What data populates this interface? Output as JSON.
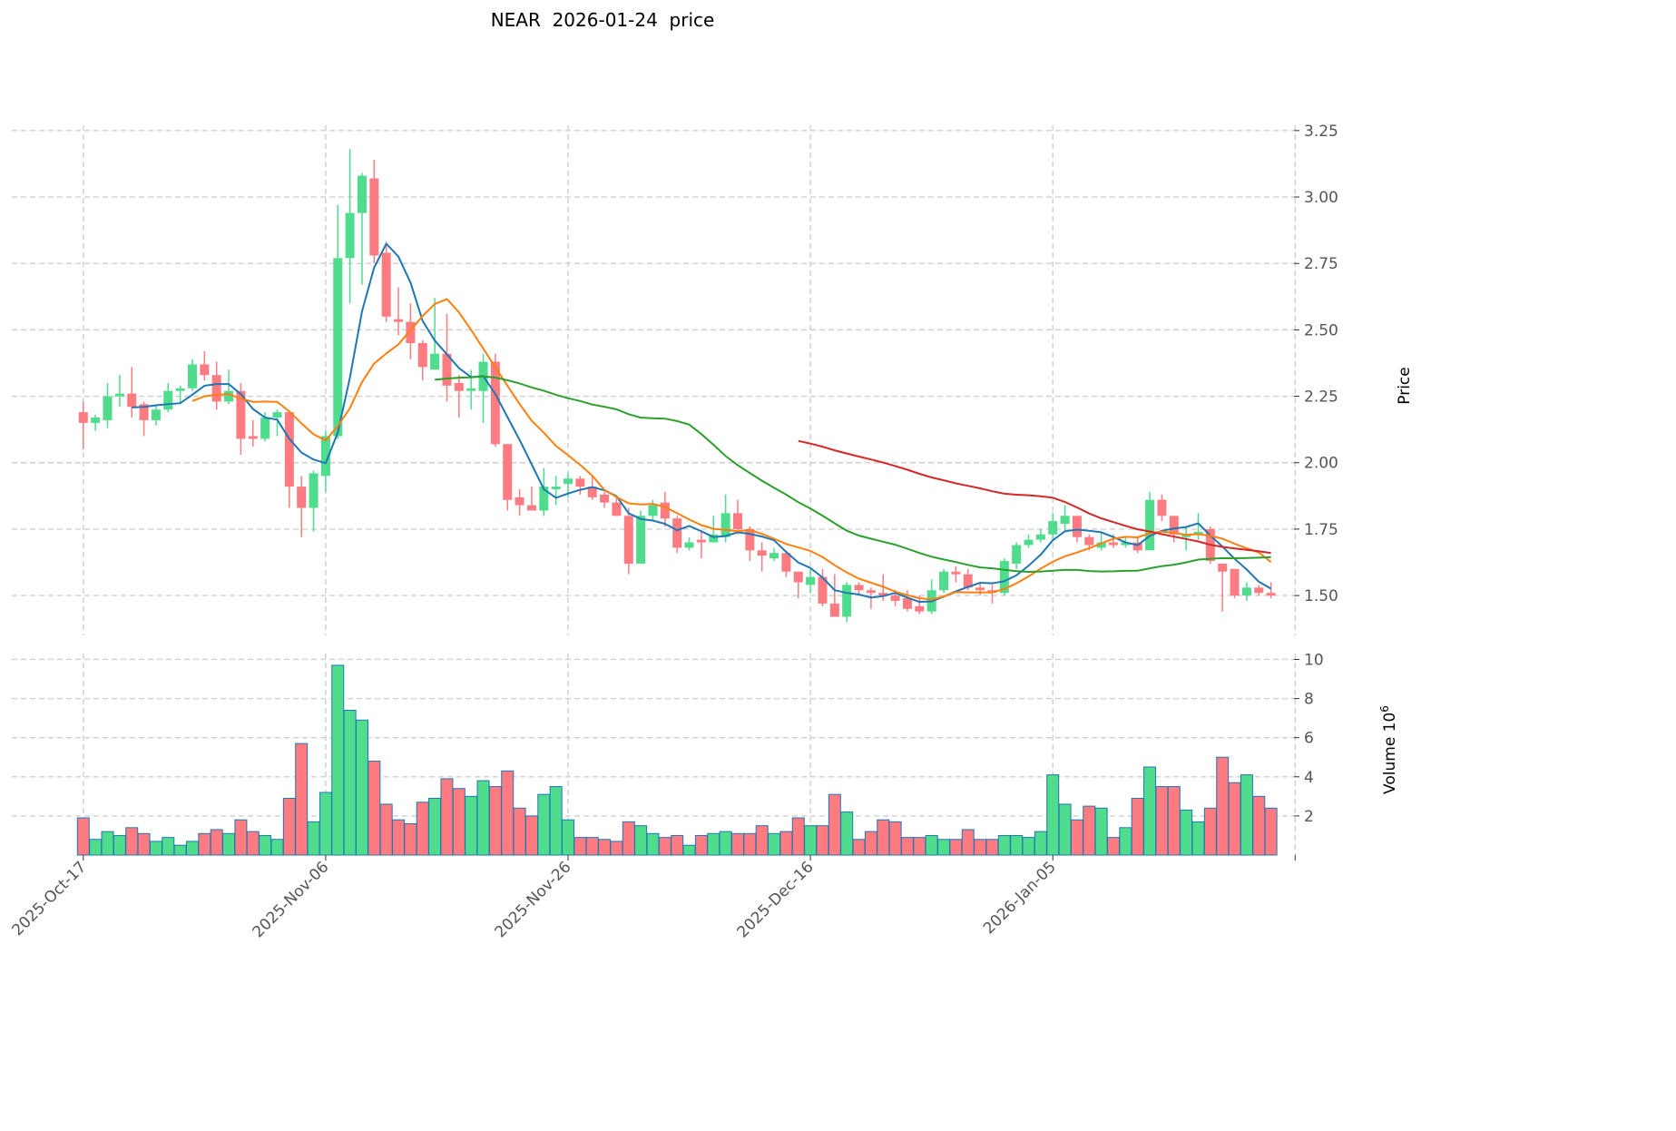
{
  "title": "NEAR  2026-01-24  price",
  "chart_data": {
    "type": "candlestick",
    "title": "NEAR  2026-01-24  price",
    "ylabel": "Price",
    "volume_label": "Volume  10",
    "volume_exponent": "6",
    "ylim": [
      1.35,
      3.27
    ],
    "volume_ylim": [
      0,
      10.3
    ],
    "xlim": [
      -5.9,
      99.9
    ],
    "yticks": [
      "1.50",
      "1.75",
      "2.00",
      "2.25",
      "2.50",
      "2.75",
      "3.00",
      "3.25"
    ],
    "volume_yticks": [
      "2",
      "4",
      "6",
      "8",
      "10"
    ],
    "xticks": [
      {
        "index": 0,
        "label": "2025-Oct-17"
      },
      {
        "index": 20,
        "label": "2025-Nov-06"
      },
      {
        "index": 40,
        "label": "2025-Nov-26"
      },
      {
        "index": 60,
        "label": "2025-Dec-16"
      },
      {
        "index": 80,
        "label": "2026-Jan-05"
      },
      {
        "index": 100,
        "label": ""
      }
    ],
    "colors": {
      "up": "#4fdc8c",
      "down": "#ff7b82",
      "edge_vol": "#1f77b4"
    },
    "moving_averages": [
      {
        "window": 5,
        "color": "#1f77b4"
      },
      {
        "window": 10,
        "color": "#ff7f0e"
      },
      {
        "window": 30,
        "color": "#2ca02c"
      },
      {
        "window": 60,
        "color": "#d62728"
      }
    ],
    "ohlc": [
      [
        2.19,
        2.23,
        2.05,
        2.15
      ],
      [
        2.15,
        2.18,
        2.12,
        2.17
      ],
      [
        2.16,
        2.3,
        2.13,
        2.25
      ],
      [
        2.25,
        2.33,
        2.21,
        2.26
      ],
      [
        2.26,
        2.36,
        2.17,
        2.21
      ],
      [
        2.22,
        2.23,
        2.1,
        2.16
      ],
      [
        2.16,
        2.22,
        2.14,
        2.2
      ],
      [
        2.2,
        2.3,
        2.19,
        2.27
      ],
      [
        2.27,
        2.29,
        2.22,
        2.28
      ],
      [
        2.28,
        2.39,
        2.27,
        2.37
      ],
      [
        2.37,
        2.42,
        2.31,
        2.33
      ],
      [
        2.33,
        2.38,
        2.2,
        2.23
      ],
      [
        2.23,
        2.35,
        2.22,
        2.27
      ],
      [
        2.27,
        2.3,
        2.03,
        2.09
      ],
      [
        2.1,
        2.16,
        2.06,
        2.09
      ],
      [
        2.09,
        2.19,
        2.08,
        2.17
      ],
      [
        2.17,
        2.2,
        2.1,
        2.19
      ],
      [
        2.19,
        2.19,
        1.83,
        1.91
      ],
      [
        1.91,
        1.95,
        1.72,
        1.83
      ],
      [
        1.83,
        1.97,
        1.74,
        1.96
      ],
      [
        1.95,
        2.12,
        1.89,
        2.1
      ],
      [
        2.1,
        2.97,
        2.09,
        2.77
      ],
      [
        2.77,
        3.18,
        2.6,
        2.94
      ],
      [
        2.94,
        3.09,
        2.67,
        3.08
      ],
      [
        3.07,
        3.14,
        2.75,
        2.78
      ],
      [
        2.79,
        2.83,
        2.53,
        2.55
      ],
      [
        2.54,
        2.66,
        2.48,
        2.53
      ],
      [
        2.53,
        2.6,
        2.39,
        2.45
      ],
      [
        2.45,
        2.46,
        2.31,
        2.36
      ],
      [
        2.35,
        2.62,
        2.35,
        2.41
      ],
      [
        2.41,
        2.56,
        2.23,
        2.29
      ],
      [
        2.3,
        2.33,
        2.17,
        2.27
      ],
      [
        2.27,
        2.35,
        2.2,
        2.28
      ],
      [
        2.27,
        2.41,
        2.15,
        2.38
      ],
      [
        2.38,
        2.41,
        2.06,
        2.07
      ],
      [
        2.07,
        2.07,
        1.82,
        1.86
      ],
      [
        1.87,
        1.9,
        1.8,
        1.84
      ],
      [
        1.84,
        1.91,
        1.82,
        1.82
      ],
      [
        1.82,
        1.98,
        1.8,
        1.91
      ],
      [
        1.9,
        1.95,
        1.84,
        1.91
      ],
      [
        1.92,
        1.96,
        1.87,
        1.94
      ],
      [
        1.94,
        1.95,
        1.88,
        1.91
      ],
      [
        1.91,
        1.95,
        1.86,
        1.87
      ],
      [
        1.88,
        1.89,
        1.83,
        1.85
      ],
      [
        1.85,
        1.87,
        1.8,
        1.8
      ],
      [
        1.8,
        1.83,
        1.58,
        1.62
      ],
      [
        1.62,
        1.82,
        1.62,
        1.8
      ],
      [
        1.8,
        1.86,
        1.78,
        1.84
      ],
      [
        1.85,
        1.89,
        1.76,
        1.79
      ],
      [
        1.79,
        1.8,
        1.66,
        1.68
      ],
      [
        1.68,
        1.72,
        1.67,
        1.7
      ],
      [
        1.71,
        1.74,
        1.64,
        1.7
      ],
      [
        1.7,
        1.8,
        1.7,
        1.73
      ],
      [
        1.72,
        1.88,
        1.7,
        1.81
      ],
      [
        1.81,
        1.86,
        1.73,
        1.75
      ],
      [
        1.75,
        1.76,
        1.63,
        1.67
      ],
      [
        1.67,
        1.7,
        1.59,
        1.65
      ],
      [
        1.64,
        1.68,
        1.63,
        1.66
      ],
      [
        1.66,
        1.67,
        1.57,
        1.59
      ],
      [
        1.59,
        1.59,
        1.49,
        1.55
      ],
      [
        1.54,
        1.6,
        1.51,
        1.57
      ],
      [
        1.57,
        1.6,
        1.46,
        1.47
      ],
      [
        1.47,
        1.58,
        1.42,
        1.42
      ],
      [
        1.42,
        1.55,
        1.4,
        1.54
      ],
      [
        1.54,
        1.55,
        1.5,
        1.52
      ],
      [
        1.52,
        1.53,
        1.45,
        1.51
      ],
      [
        1.51,
        1.58,
        1.48,
        1.5
      ],
      [
        1.5,
        1.52,
        1.46,
        1.48
      ],
      [
        1.49,
        1.52,
        1.44,
        1.45
      ],
      [
        1.46,
        1.5,
        1.43,
        1.44
      ],
      [
        1.44,
        1.56,
        1.43,
        1.52
      ],
      [
        1.52,
        1.6,
        1.51,
        1.59
      ],
      [
        1.59,
        1.61,
        1.55,
        1.58
      ],
      [
        1.58,
        1.6,
        1.52,
        1.53
      ],
      [
        1.53,
        1.55,
        1.5,
        1.52
      ],
      [
        1.52,
        1.54,
        1.47,
        1.51
      ],
      [
        1.51,
        1.64,
        1.5,
        1.63
      ],
      [
        1.62,
        1.7,
        1.6,
        1.69
      ],
      [
        1.69,
        1.73,
        1.68,
        1.71
      ],
      [
        1.71,
        1.75,
        1.7,
        1.73
      ],
      [
        1.73,
        1.81,
        1.71,
        1.78
      ],
      [
        1.77,
        1.84,
        1.74,
        1.8
      ],
      [
        1.8,
        1.8,
        1.7,
        1.72
      ],
      [
        1.72,
        1.73,
        1.67,
        1.69
      ],
      [
        1.68,
        1.74,
        1.67,
        1.7
      ],
      [
        1.7,
        1.73,
        1.68,
        1.69
      ],
      [
        1.69,
        1.72,
        1.68,
        1.7
      ],
      [
        1.7,
        1.72,
        1.66,
        1.67
      ],
      [
        1.67,
        1.89,
        1.67,
        1.86
      ],
      [
        1.86,
        1.88,
        1.78,
        1.8
      ],
      [
        1.8,
        1.8,
        1.7,
        1.73
      ],
      [
        1.72,
        1.76,
        1.67,
        1.73
      ],
      [
        1.73,
        1.81,
        1.71,
        1.74
      ],
      [
        1.75,
        1.76,
        1.62,
        1.63
      ],
      [
        1.62,
        1.62,
        1.44,
        1.59
      ],
      [
        1.6,
        1.6,
        1.49,
        1.5
      ],
      [
        1.5,
        1.55,
        1.48,
        1.53
      ],
      [
        1.53,
        1.54,
        1.5,
        1.51
      ],
      [
        1.51,
        1.55,
        1.49,
        1.5
      ]
    ],
    "volume": [
      1.9,
      0.8,
      1.2,
      1.0,
      1.4,
      1.1,
      0.7,
      0.9,
      0.5,
      0.7,
      1.1,
      1.3,
      1.1,
      1.8,
      1.2,
      1.0,
      0.8,
      2.9,
      5.7,
      1.7,
      3.2,
      9.7,
      7.4,
      6.9,
      4.8,
      2.6,
      1.8,
      1.6,
      2.7,
      2.9,
      3.9,
      3.4,
      3.0,
      3.8,
      3.5,
      4.3,
      2.4,
      2.0,
      3.1,
      3.5,
      1.8,
      0.9,
      0.9,
      0.8,
      0.7,
      1.7,
      1.5,
      1.1,
      0.9,
      1.0,
      0.5,
      1.0,
      1.1,
      1.2,
      1.1,
      1.1,
      1.5,
      1.1,
      1.2,
      1.9,
      1.5,
      1.5,
      3.1,
      2.2,
      0.8,
      1.2,
      1.8,
      1.7,
      0.9,
      0.9,
      1.0,
      0.8,
      0.8,
      1.3,
      0.8,
      0.8,
      1.0,
      1.0,
      0.9,
      1.2,
      4.1,
      2.6,
      1.8,
      2.5,
      2.4,
      0.9,
      1.4,
      2.9,
      4.5,
      3.5,
      3.5,
      2.3,
      1.7,
      2.4,
      5.0,
      3.7,
      4.1,
      3.0,
      2.4
    ]
  }
}
